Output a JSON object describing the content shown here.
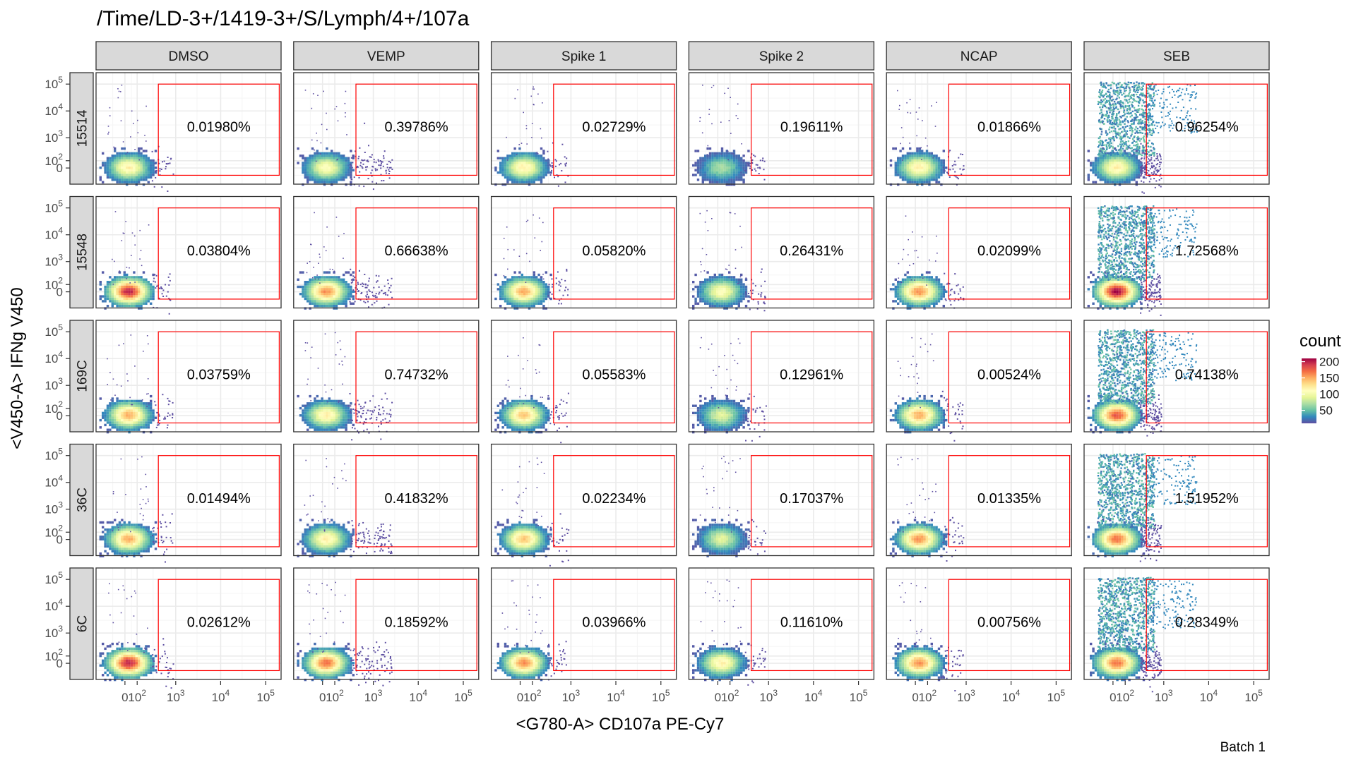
{
  "chart_data": {
    "type": "heatmap",
    "title": "/Time/LD-3+/1419-3+/S/Lymph/4+/107a",
    "xlabel": "<G780-A> CD107a PE-Cy7",
    "ylabel": "<V450-A> IFNg V450",
    "caption": "Batch 1",
    "columns": [
      "DMSO",
      "VEMP",
      "Spike 1",
      "Spike 2",
      "NCAP",
      "SEB"
    ],
    "rows": [
      "15514",
      "15548",
      "169C",
      "36C",
      "6C"
    ],
    "x_ticks": [
      {
        "base": "0",
        "exp": ""
      },
      {
        "base": "10",
        "exp": "2"
      },
      {
        "base": "10",
        "exp": "3"
      },
      {
        "base": "10",
        "exp": "4"
      },
      {
        "base": "10",
        "exp": "5"
      }
    ],
    "y_ticks": [
      {
        "base": "0",
        "exp": ""
      },
      {
        "base": "10",
        "exp": "2"
      },
      {
        "base": "10",
        "exp": "3"
      },
      {
        "base": "10",
        "exp": "4"
      },
      {
        "base": "10",
        "exp": "5"
      }
    ],
    "gate_percentages": [
      [
        "0.01980%",
        "0.39786%",
        "0.02729%",
        "0.19611%",
        "0.01866%",
        "0.96254%"
      ],
      [
        "0.03804%",
        "0.66638%",
        "0.05820%",
        "0.26431%",
        "0.02099%",
        "1.72568%"
      ],
      [
        "0.03759%",
        "0.74732%",
        "0.05583%",
        "0.12961%",
        "0.00524%",
        "0.74138%"
      ],
      [
        "0.01494%",
        "0.41832%",
        "0.02234%",
        "0.17037%",
        "0.01335%",
        "1.51952%"
      ],
      [
        "0.02612%",
        "0.18592%",
        "0.03966%",
        "0.11610%",
        "0.00756%",
        "0.28349%"
      ]
    ],
    "peak_density": [
      [
        0.55,
        0.5,
        0.55,
        0.3,
        0.55,
        0.55
      ],
      [
        0.95,
        0.75,
        0.7,
        0.5,
        0.75,
        1.0
      ],
      [
        0.7,
        0.55,
        0.65,
        0.4,
        0.7,
        0.85
      ],
      [
        0.7,
        0.55,
        0.65,
        0.4,
        0.75,
        0.8
      ],
      [
        0.95,
        0.8,
        0.75,
        0.55,
        0.75,
        0.8
      ]
    ],
    "gate": {
      "x_min": 400,
      "x_max": 200000,
      "y_min": -100,
      "y_max": 100000
    },
    "legend": {
      "title": "count",
      "breaks": [
        "50",
        "100",
        "150",
        "200"
      ],
      "placement": "right"
    },
    "colors": {
      "panel_border": "#333333",
      "strip_fill": "#d9d9d9",
      "gate": "#ff0000",
      "grid_major": "#ebebeb",
      "grid_minor": "#f5f5f5",
      "palette": [
        "#5e4fa2",
        "#3288bd",
        "#66c2a5",
        "#abdda4",
        "#e6f598",
        "#ffffbf",
        "#fee08b",
        "#fdae61",
        "#f46d43",
        "#d53e4f",
        "#9e0142"
      ]
    }
  }
}
